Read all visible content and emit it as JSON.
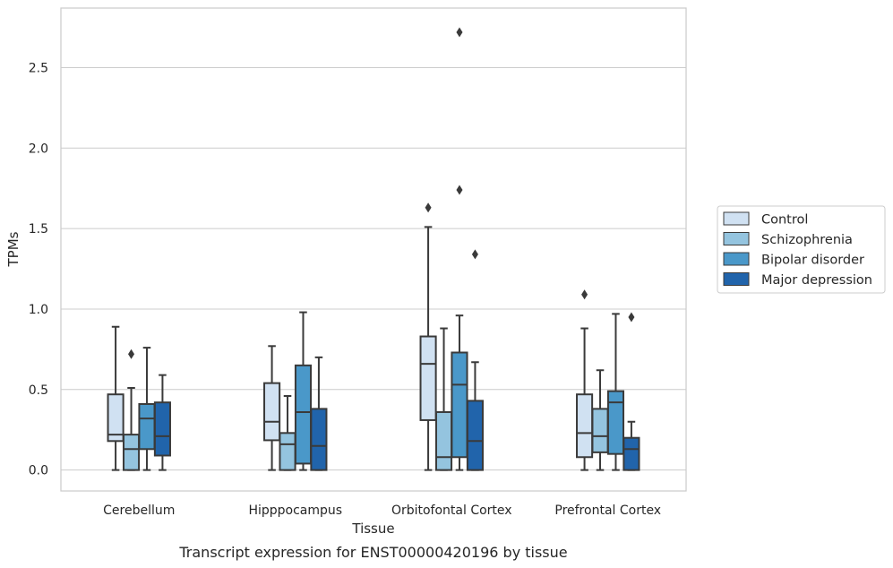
{
  "chart_data": {
    "type": "box",
    "title": "",
    "caption": "Transcript expression for ENST00000420196 by tissue",
    "xlabel": "Tissue",
    "ylabel": "TPMs",
    "ylim": [
      -0.13,
      2.87
    ],
    "yticks": [
      0.0,
      0.5,
      1.0,
      1.5,
      2.0,
      2.5
    ],
    "ytick_labels": [
      "0.0",
      "0.5",
      "1.0",
      "1.5",
      "2.0",
      "2.5"
    ],
    "grid": "horizontal",
    "legend_position": "outside-right",
    "categories": [
      "Cerebellum",
      "Hipppocampus",
      "Orbitofontal Cortex",
      "Prefrontal Cortex"
    ],
    "series": [
      {
        "name": "Control",
        "color": "#d0e1f2",
        "boxes": [
          {
            "whislo": 0.0,
            "q1": 0.18,
            "med": 0.22,
            "q3": 0.47,
            "whishi": 0.89,
            "fliers": []
          },
          {
            "whislo": 0.0,
            "q1": 0.185,
            "med": 0.3,
            "q3": 0.54,
            "whishi": 0.77,
            "fliers": []
          },
          {
            "whislo": 0.0,
            "q1": 0.31,
            "med": 0.66,
            "q3": 0.83,
            "whishi": 1.51,
            "fliers": [
              1.63
            ]
          },
          {
            "whislo": 0.0,
            "q1": 0.08,
            "med": 0.23,
            "q3": 0.47,
            "whishi": 0.88,
            "fliers": [
              1.09
            ]
          }
        ]
      },
      {
        "name": "Schizophrenia",
        "color": "#94c4df",
        "boxes": [
          {
            "whislo": 0.0,
            "q1": 0.0,
            "med": 0.13,
            "q3": 0.22,
            "whishi": 0.51,
            "fliers": [
              0.72
            ]
          },
          {
            "whislo": 0.0,
            "q1": 0.0,
            "med": 0.16,
            "q3": 0.23,
            "whishi": 0.46,
            "fliers": []
          },
          {
            "whislo": 0.0,
            "q1": 0.0,
            "med": 0.08,
            "q3": 0.36,
            "whishi": 0.88,
            "fliers": []
          },
          {
            "whislo": 0.0,
            "q1": 0.11,
            "med": 0.21,
            "q3": 0.38,
            "whishi": 0.62,
            "fliers": []
          }
        ]
      },
      {
        "name": "Bipolar disorder",
        "color": "#4a98c9",
        "boxes": [
          {
            "whislo": 0.0,
            "q1": 0.13,
            "med": 0.32,
            "q3": 0.41,
            "whishi": 0.76,
            "fliers": []
          },
          {
            "whislo": 0.0,
            "q1": 0.04,
            "med": 0.36,
            "q3": 0.65,
            "whishi": 0.98,
            "fliers": []
          },
          {
            "whislo": 0.0,
            "q1": 0.08,
            "med": 0.53,
            "q3": 0.73,
            "whishi": 0.96,
            "fliers": [
              1.74,
              2.72
            ]
          },
          {
            "whislo": 0.0,
            "q1": 0.1,
            "med": 0.42,
            "q3": 0.49,
            "whishi": 0.97,
            "fliers": []
          }
        ]
      },
      {
        "name": "Major depression",
        "color": "#2164ab",
        "boxes": [
          {
            "whislo": 0.0,
            "q1": 0.09,
            "med": 0.21,
            "q3": 0.42,
            "whishi": 0.59,
            "fliers": []
          },
          {
            "whislo": 0.0,
            "q1": 0.0,
            "med": 0.15,
            "q3": 0.38,
            "whishi": 0.7,
            "fliers": []
          },
          {
            "whislo": 0.0,
            "q1": 0.0,
            "med": 0.18,
            "q3": 0.43,
            "whishi": 0.67,
            "fliers": [
              1.34
            ]
          },
          {
            "whislo": 0.0,
            "q1": 0.0,
            "med": 0.13,
            "q3": 0.2,
            "whishi": 0.3,
            "fliers": [
              0.95
            ]
          }
        ]
      }
    ]
  }
}
